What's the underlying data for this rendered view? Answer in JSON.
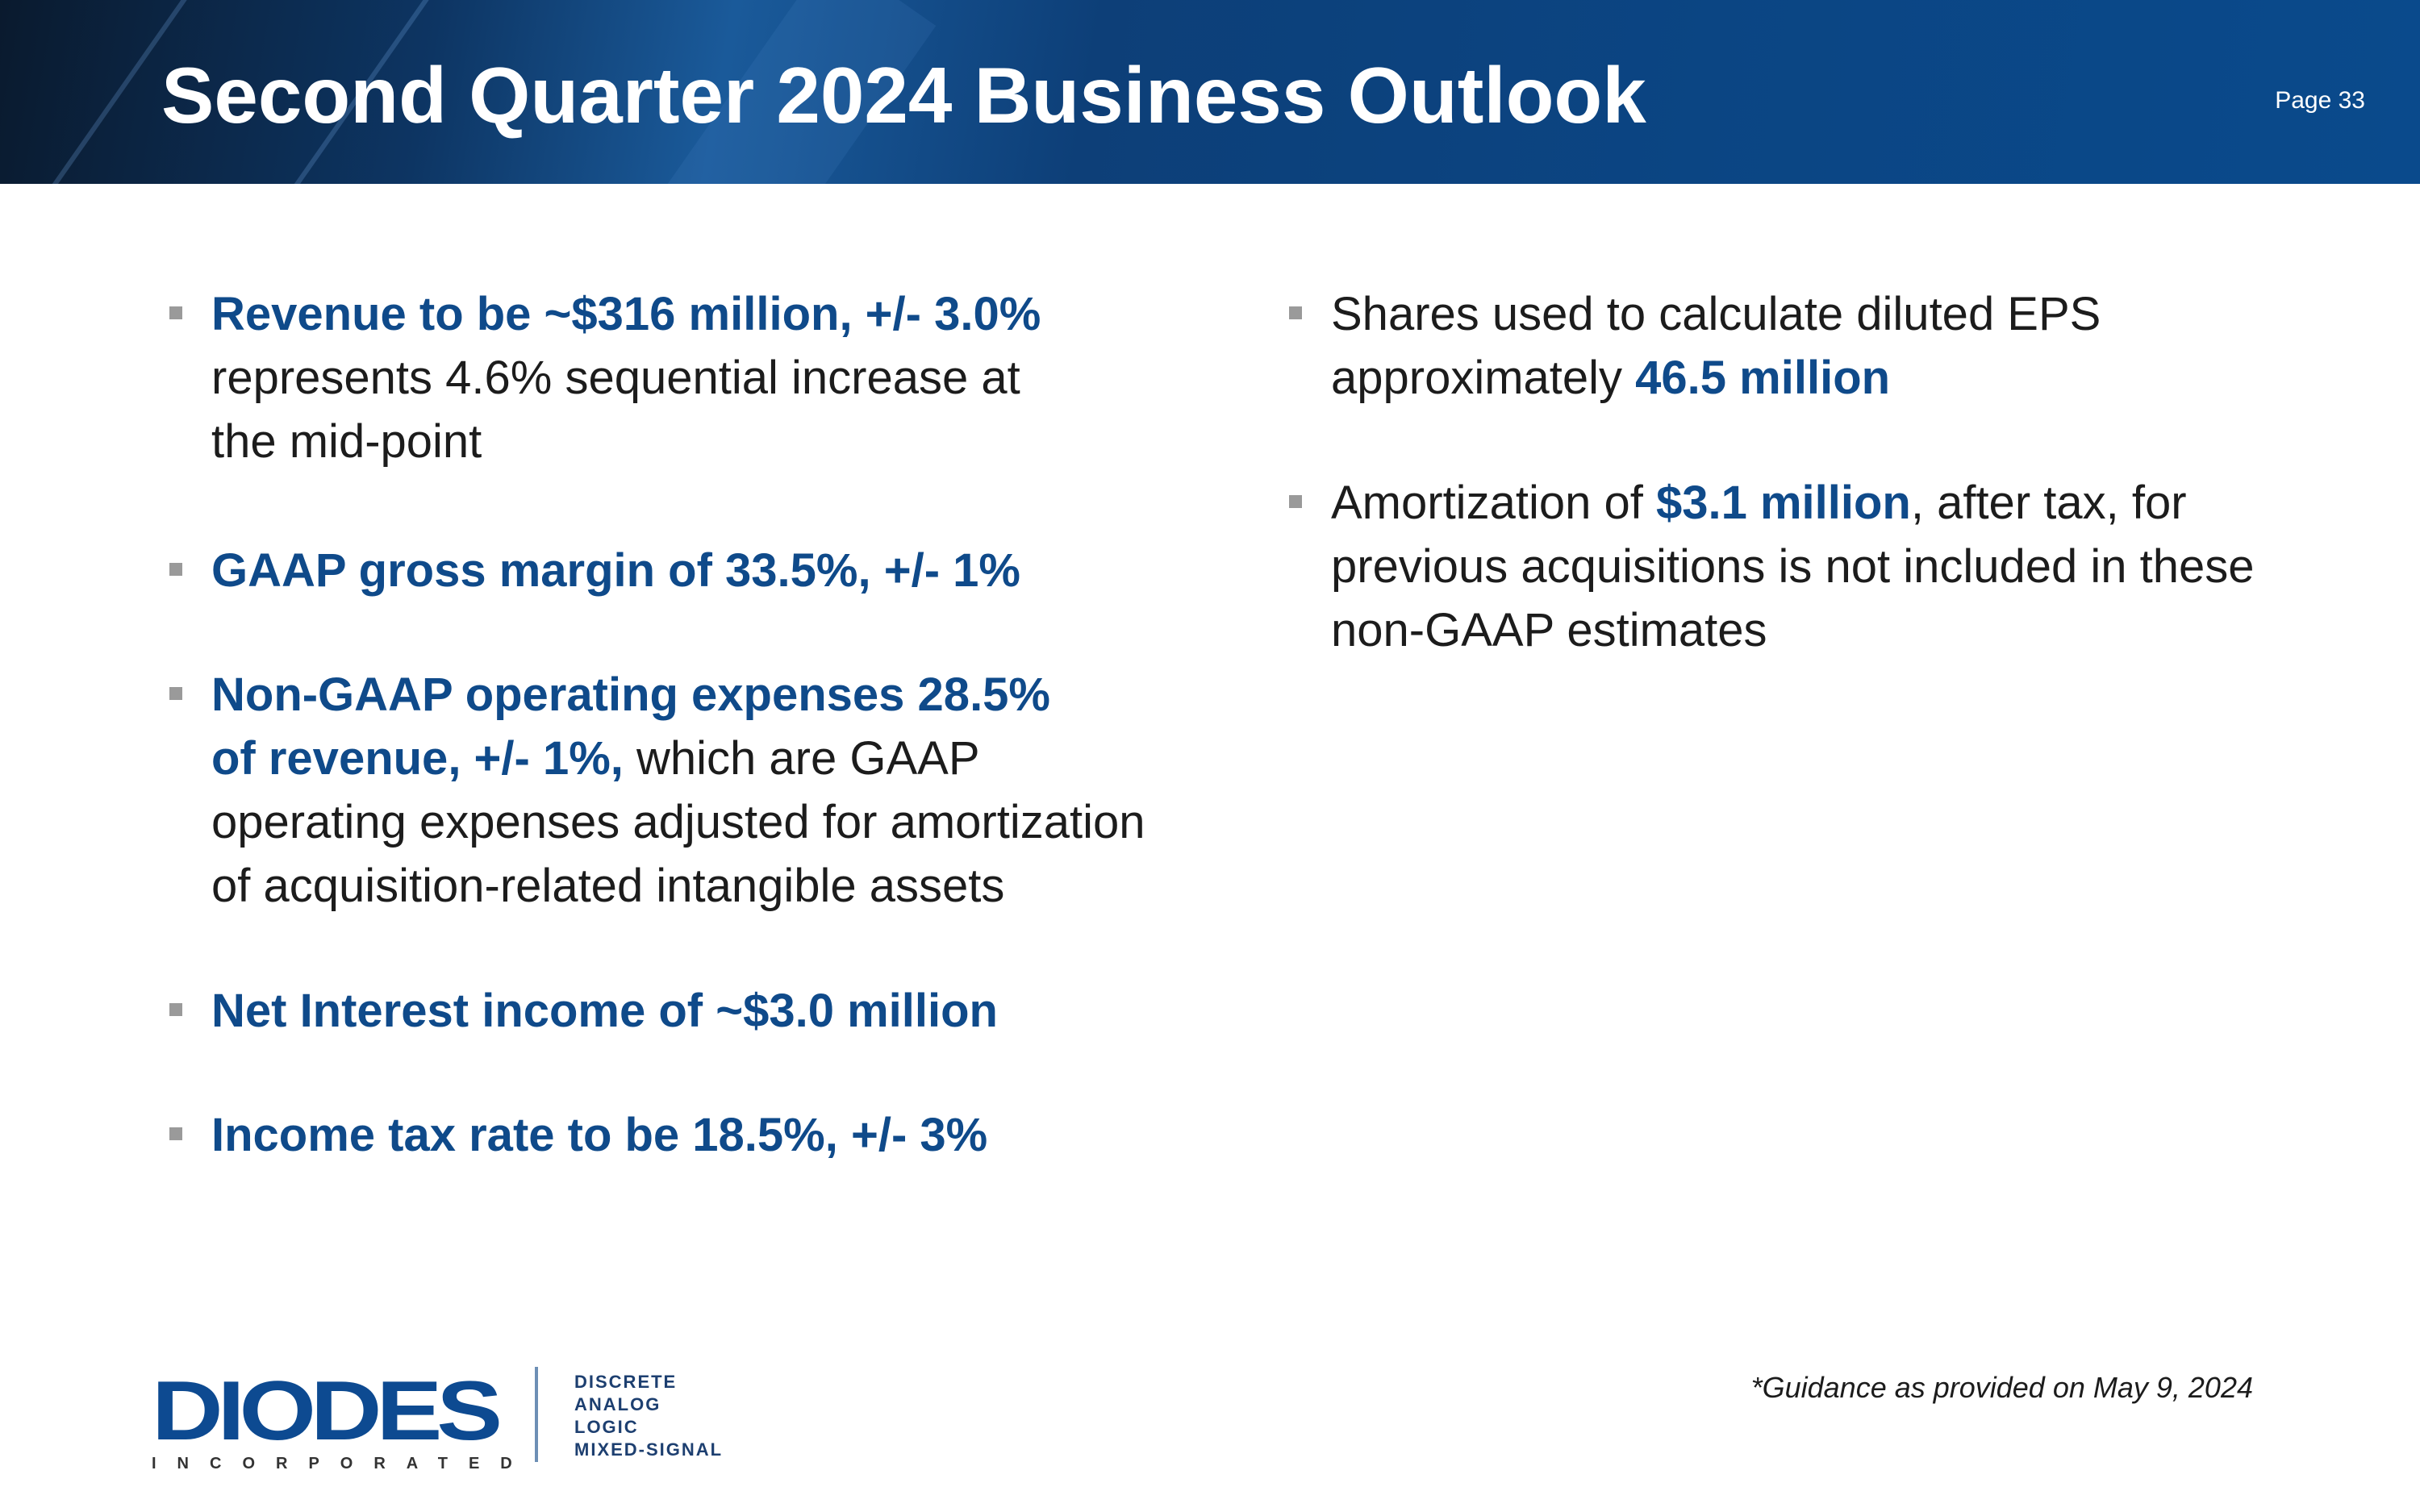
{
  "header": {
    "title": "Second Quarter 2024 Business Outlook",
    "page": "Page 33"
  },
  "left": {
    "b1": {
      "l1": "Revenue to be ~$316 million, +/- 3.0%",
      "l2": "represents 4.6% sequential increase at",
      "l3": "the mid-point"
    },
    "b2": {
      "l1": "GAAP gross margin of 33.5%, +/- 1%"
    },
    "b3": {
      "l1": "Non-GAAP operating expenses 28.5%",
      "l2a": "of revenue, +/- 1%,",
      "l2b": " which are GAAP",
      "l3": "operating expenses adjusted for amortization",
      "l4": "of acquisition-related intangible assets"
    },
    "b4": {
      "l1": "Net Interest income of ~$3.0 million"
    },
    "b5": {
      "l1": "Income tax rate to be 18.5%, +/- 3%"
    }
  },
  "right": {
    "b1": {
      "l1": "Shares used to calculate diluted EPS",
      "l2a": "approximately ",
      "l2b": "46.5 million"
    },
    "b2": {
      "l1a": "Amortization of ",
      "l1b": "$3.1 million",
      "l1c": ", after tax, for",
      "l2": "previous acquisitions is not included in these",
      "l3": "non-GAAP estimates"
    }
  },
  "footnote": "*Guidance as provided on May 9, 2024",
  "logo": {
    "name": "DIODES",
    "sub": "INCORPORATED",
    "tags": [
      "DISCRETE",
      "ANALOG",
      "LOGIC",
      "MIXED-SIGNAL"
    ]
  },
  "colors": {
    "accent": "#0f4a8a",
    "header": "#0b4583"
  }
}
